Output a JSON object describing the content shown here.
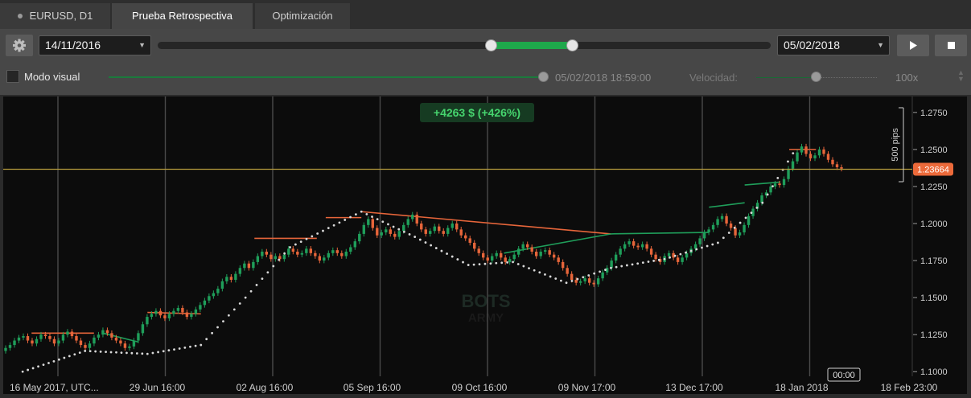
{
  "tabs": [
    {
      "label": "EURUSD, D1"
    },
    {
      "label": "Prueba Retrospectiva"
    },
    {
      "label": "Optimización"
    }
  ],
  "toolbar": {
    "start_date": "14/11/2016",
    "end_date": "05/02/2018",
    "range_start_fraction": 0.54,
    "range_end_fraction": 0.67,
    "play_icon": "play-icon",
    "stop_icon": "stop-icon",
    "settings_icon": "gear-icon"
  },
  "visual_mode": {
    "label": "Modo visual",
    "checked": false,
    "current_time": "05/02/2018 18:59:00",
    "speed_label": "Velocidad:",
    "speed_value": "100x",
    "progress_fraction": 1.0
  },
  "chart": {
    "profit_label": "+4263 $ (+426%)",
    "pips_label": "500 pips",
    "current_price": "1.23664",
    "watermark_top": "BOTS",
    "watermark_bottom": "ARMY",
    "crosshair_time": "00:00",
    "colors": {
      "bull": "#1f9e5a",
      "bear": "#e6653a",
      "price_line": "#b49a3c",
      "price_tag": "#ec6a3a",
      "profit_text": "#46d46e"
    }
  },
  "chart_data": {
    "type": "candlestick",
    "symbol": "EURUSD",
    "timeframe": "D1",
    "x_tick_labels": [
      "16 May 2017, UTC...",
      "29 Jun 16:00",
      "02 Aug 16:00",
      "05 Sep 16:00",
      "09 Oct 16:00",
      "09 Nov 17:00",
      "13 Dec 17:00",
      "18 Jan 2018",
      "18 Feb 23:00"
    ],
    "y_tick_labels": [
      "1.2750",
      "1.2500",
      "1.2250",
      "1.2000",
      "1.1750",
      "1.1500",
      "1.1250",
      "1.1000"
    ],
    "ylim": [
      1.0985,
      1.2825
    ],
    "current_price": 1.23664,
    "close_series": [
      1.116,
      1.118,
      1.121,
      1.123,
      1.124,
      1.121,
      1.119,
      1.122,
      1.125,
      1.124,
      1.122,
      1.119,
      1.121,
      1.125,
      1.127,
      1.124,
      1.121,
      1.118,
      1.116,
      1.119,
      1.123,
      1.125,
      1.128,
      1.126,
      1.123,
      1.121,
      1.119,
      1.116,
      1.117,
      1.121,
      1.126,
      1.132,
      1.137,
      1.139,
      1.141,
      1.138,
      1.136,
      1.139,
      1.141,
      1.143,
      1.14,
      1.137,
      1.139,
      1.142,
      1.145,
      1.148,
      1.151,
      1.153,
      1.156,
      1.161,
      1.164,
      1.162,
      1.166,
      1.17,
      1.173,
      1.17,
      1.174,
      1.178,
      1.181,
      1.179,
      1.176,
      1.178,
      1.176,
      1.179,
      1.183,
      1.181,
      1.179,
      1.18,
      1.183,
      1.18,
      1.178,
      1.175,
      1.177,
      1.18,
      1.182,
      1.18,
      1.178,
      1.181,
      1.184,
      1.188,
      1.193,
      1.199,
      1.203,
      1.197,
      1.192,
      1.194,
      1.196,
      1.193,
      1.191,
      1.195,
      1.199,
      1.203,
      1.206,
      1.2,
      1.196,
      1.193,
      1.195,
      1.198,
      1.195,
      1.193,
      1.197,
      1.2,
      1.196,
      1.192,
      1.19,
      1.187,
      1.183,
      1.18,
      1.177,
      1.175,
      1.178,
      1.18,
      1.177,
      1.174,
      1.176,
      1.179,
      1.183,
      1.186,
      1.184,
      1.181,
      1.178,
      1.181,
      1.182,
      1.179,
      1.177,
      1.174,
      1.17,
      1.166,
      1.162,
      1.16,
      1.161,
      1.163,
      1.16,
      1.159,
      1.163,
      1.167,
      1.17,
      1.175,
      1.179,
      1.183,
      1.186,
      1.188,
      1.185,
      1.184,
      1.186,
      1.183,
      1.179,
      1.176,
      1.174,
      1.178,
      1.18,
      1.177,
      1.174,
      1.177,
      1.18,
      1.183,
      1.186,
      1.19,
      1.194,
      1.196,
      1.199,
      1.203,
      1.205,
      1.2,
      1.197,
      1.192,
      1.194,
      1.199,
      1.205,
      1.21,
      1.214,
      1.219,
      1.221,
      1.225,
      1.227,
      1.226,
      1.23,
      1.237,
      1.242,
      1.248,
      1.252,
      1.247,
      1.244,
      1.246,
      1.25,
      1.247,
      1.243,
      1.24,
      1.238,
      1.237
    ],
    "trailing_stop_dots": [
      [
        0.02,
        1.1
      ],
      [
        0.09,
        1.114
      ],
      [
        0.16,
        1.112
      ],
      [
        0.22,
        1.118
      ],
      [
        0.27,
        1.15
      ],
      [
        0.32,
        1.184
      ],
      [
        0.4,
        1.208
      ],
      [
        0.46,
        1.191
      ],
      [
        0.52,
        1.172
      ],
      [
        0.57,
        1.174
      ],
      [
        0.63,
        1.16
      ],
      [
        0.68,
        1.17
      ],
      [
        0.74,
        1.176
      ],
      [
        0.8,
        1.187
      ],
      [
        0.85,
        1.214
      ],
      [
        0.89,
        1.253
      ]
    ],
    "trade_lines": [
      {
        "from": [
          0.03,
          1.126
        ],
        "to": [
          0.1,
          1.126
        ],
        "result": "loss"
      },
      {
        "from": [
          0.11,
          1.126
        ],
        "to": [
          0.15,
          1.12
        ],
        "result": "win"
      },
      {
        "from": [
          0.16,
          1.14
        ],
        "to": [
          0.22,
          1.139
        ],
        "result": "loss"
      },
      {
        "from": [
          0.28,
          1.19
        ],
        "to": [
          0.35,
          1.19
        ],
        "result": "loss"
      },
      {
        "from": [
          0.36,
          1.204
        ],
        "to": [
          0.4,
          1.204
        ],
        "result": "loss"
      },
      {
        "from": [
          0.4,
          1.208
        ],
        "to": [
          0.68,
          1.193
        ],
        "result": "loss"
      },
      {
        "from": [
          0.56,
          1.18
        ],
        "to": [
          0.68,
          1.193
        ],
        "result": "win"
      },
      {
        "from": [
          0.68,
          1.193
        ],
        "to": [
          0.79,
          1.194
        ],
        "result": "win"
      },
      {
        "from": [
          0.79,
          1.211
        ],
        "to": [
          0.83,
          1.214
        ],
        "result": "win"
      },
      {
        "from": [
          0.83,
          1.226
        ],
        "to": [
          0.87,
          1.228
        ],
        "result": "win"
      },
      {
        "from": [
          0.88,
          1.25
        ],
        "to": [
          0.91,
          1.25
        ],
        "result": "loss"
      }
    ]
  }
}
